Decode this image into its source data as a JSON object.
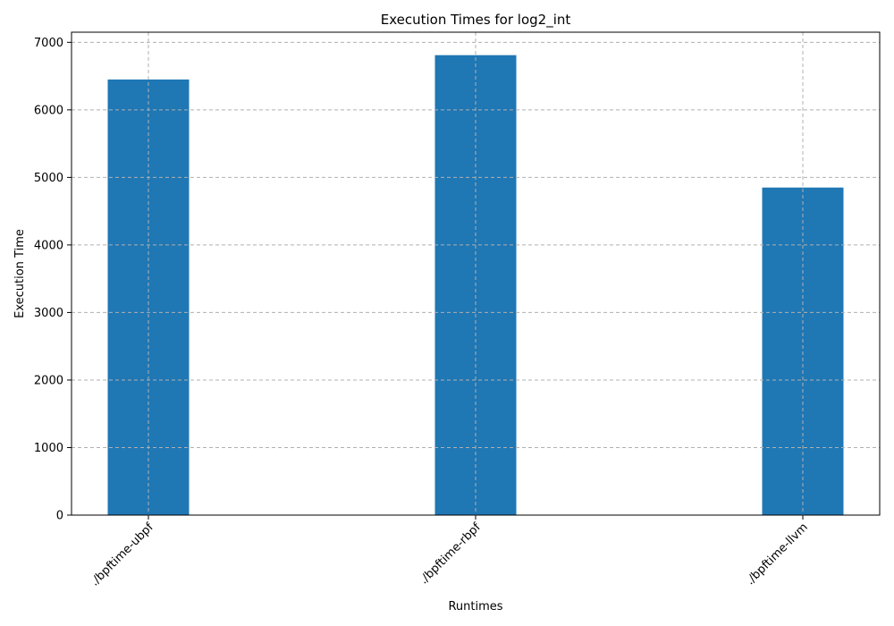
{
  "chart_data": {
    "type": "bar",
    "title": "Execution Times for log2_int",
    "xlabel": "Runtimes",
    "ylabel": "Execution Time",
    "categories": [
      "./bpftime-ubpf",
      "./bpftime-rbpf",
      "./bpftime-llvm"
    ],
    "values": [
      6450,
      6810,
      4850
    ],
    "ylim": [
      0,
      7150
    ],
    "yticks": [
      0,
      1000,
      2000,
      3000,
      4000,
      5000,
      6000,
      7000
    ],
    "grid": true,
    "bar_color": "#1f77b4",
    "grid_color": "#b0b0b0"
  }
}
